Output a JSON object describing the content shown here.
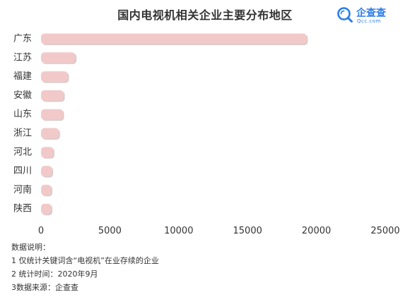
{
  "title": "国内电视机相关企业主要分布地区",
  "logo": {
    "name": "企查查",
    "domain": "Qcc.com",
    "icon": "magnifier-icon",
    "color": "#2b7de9"
  },
  "chart_data": {
    "type": "bar",
    "orientation": "horizontal",
    "title": "国内电视机相关企业主要分布地区",
    "categories": [
      "广东",
      "江苏",
      "福建",
      "安徽",
      "山东",
      "浙江",
      "河北",
      "四川",
      "河南",
      "陕西"
    ],
    "values": [
      19300,
      2500,
      1950,
      1650,
      1600,
      1300,
      900,
      800,
      750,
      750
    ],
    "xlim": [
      0,
      25000
    ],
    "xticks": [
      "0",
      "5000",
      "10000",
      "15000",
      "20000",
      "25000"
    ],
    "grid": false,
    "legend": "none",
    "bar_color": "#f2c9c9",
    "bar_edge_color": "#b5a3a3"
  },
  "notes": {
    "heading": "数据说明：",
    "line1": "1 仅统计关键词含“电视机”在业存续的企业",
    "line2": "2 统计时间：2020年9月",
    "line3": "3数据来源：企查查"
  }
}
